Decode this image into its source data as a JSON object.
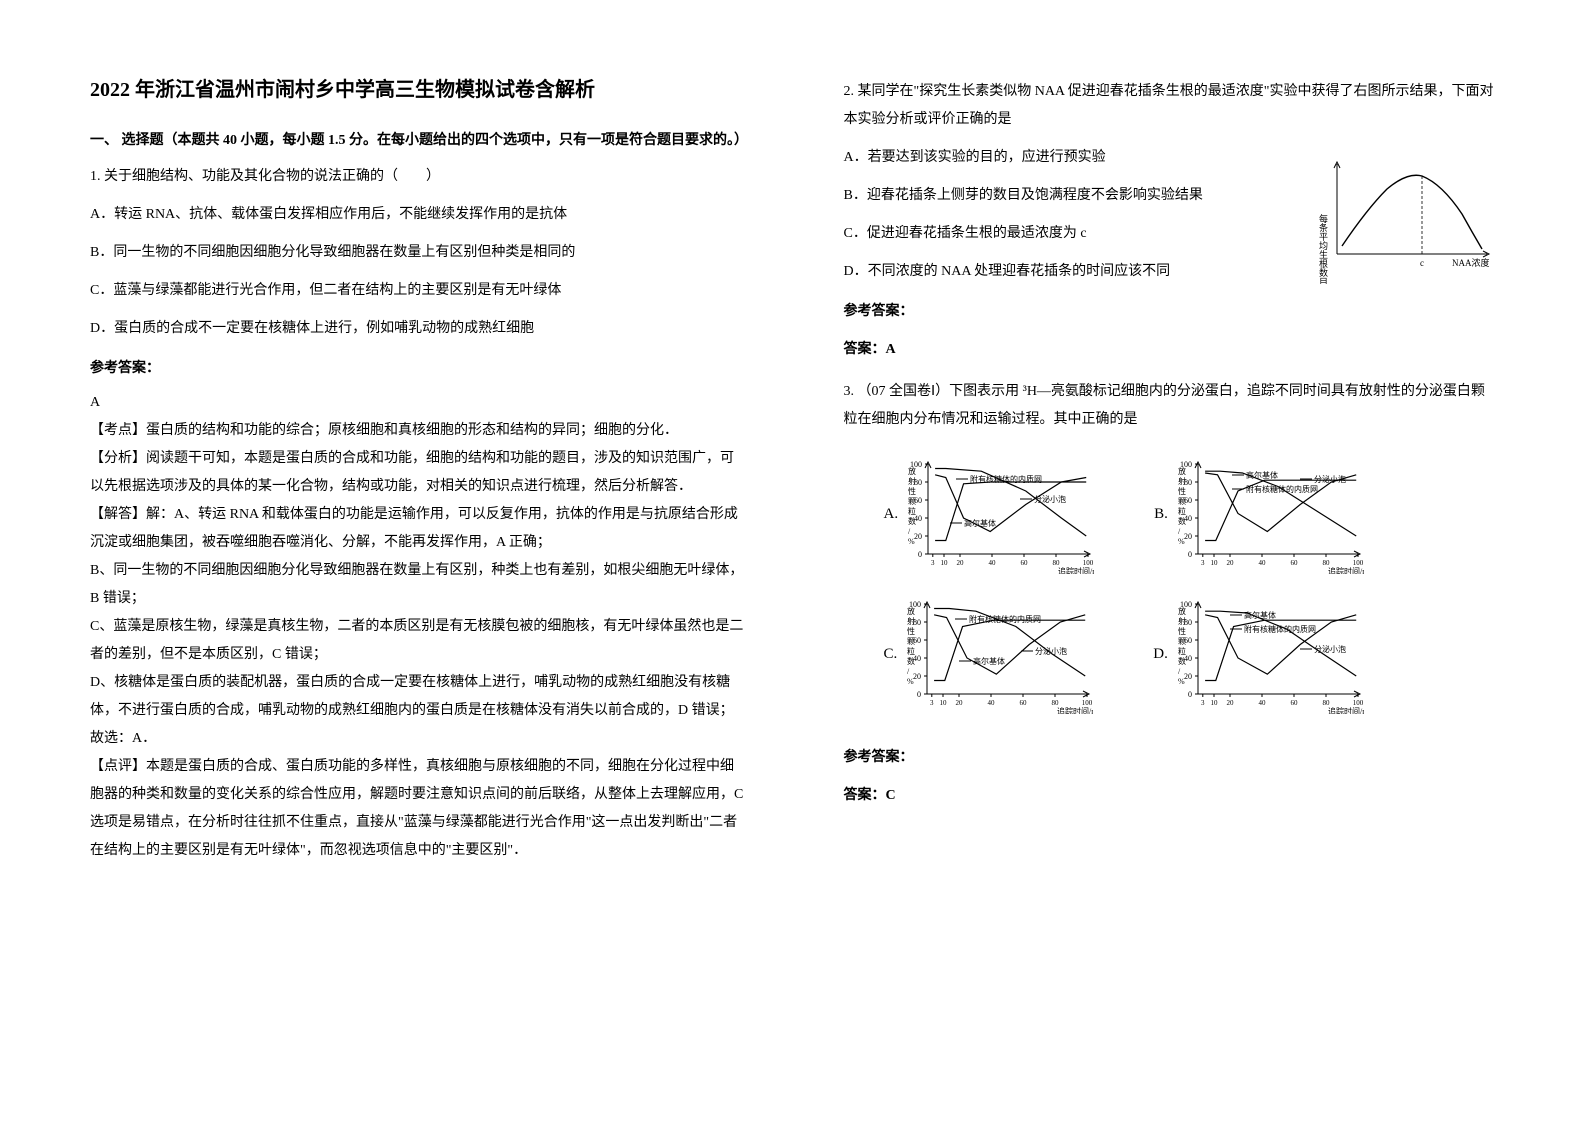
{
  "title": "2022 年浙江省温州市闹村乡中学高三生物模拟试卷含解析",
  "section1": "一、 选择题（本题共 40 小题，每小题 1.5 分。在每小题给出的四个选项中，只有一项是符合题目要求的。）",
  "q1": {
    "stem": "1. 关于细胞结构、功能及其化合物的说法正确的（　　）",
    "A": "A．转运 RNA、抗体、载体蛋白发挥相应作用后，不能继续发挥作用的是抗体",
    "B": "B．同一生物的不同细胞因细胞分化导致细胞器在数量上有区别但种类是相同的",
    "C": "C．蓝藻与绿藻都能进行光合作用，但二者在结构上的主要区别是有无叶绿体",
    "D": "D．蛋白质的合成不一定要在核糖体上进行，例如哺乳动物的成熟红细胞",
    "ansHead": "参考答案：",
    "ans": "A",
    "e1": "【考点】蛋白质的结构和功能的综合；原核细胞和真核细胞的形态和结构的异同；细胞的分化．",
    "e2": "【分析】阅读题干可知，本题是蛋白质的合成和功能，细胞的结构和功能的题目，涉及的知识范围广，可以先根据选项涉及的具体的某一化合物，结构或功能，对相关的知识点进行梳理，然后分析解答．",
    "e3": "【解答】解：A、转运 RNA 和载体蛋白的功能是运输作用，可以反复作用，抗体的作用是与抗原结合形成沉淀或细胞集团，被吞噬细胞吞噬消化、分解，不能再发挥作用，A 正确；",
    "e4": "B、同一生物的不同细胞因细胞分化导致细胞器在数量上有区别，种类上也有差别，如根尖细胞无叶绿体，B 错误；",
    "e5": "C、蓝藻是原核生物，绿藻是真核生物，二者的本质区别是有无核膜包被的细胞核，有无叶绿体虽然也是二者的差别，但不是本质区别，C 错误；",
    "e6": "D、核糖体是蛋白质的装配机器，蛋白质的合成一定要在核糖体上进行，哺乳动物的成熟红细胞没有核糖体，不进行蛋白质的合成，哺乳动物的成熟红细胞内的蛋白质是在核糖体没有消失以前合成的，D 错误；",
    "e7": "故选：A．",
    "e8": "【点评】本题是蛋白质的合成、蛋白质功能的多样性，真核细胞与原核细胞的不同，细胞在分化过程中细胞器的种类和数量的变化关系的综合性应用，解题时要注意知识点间的前后联络，从整体上去理解应用，C 选项是易错点，在分析时往往抓不住重点，直接从\"蓝藻与绿藻都能进行光合作用\"这一点出发判断出\"二者在结构上的主要区别是有无叶绿体\"，而忽视选项信息中的\"主要区别\"．"
  },
  "q2": {
    "stem": "2. 某同学在\"探究生长素类似物 NAA 促进迎春花插条生根的最适浓度\"实验中获得了右图所示结果，下面对本实验分析或评价正确的是",
    "A": "A．若要达到该实验的目的，应进行预实验",
    "B": "B．迎春花插条上侧芽的数目及饱满程度不会影响实验结果",
    "C": "C．促进迎春花插条生根的最适浓度为 c",
    "D": "D．不同浓度的 NAA 处理迎春花插条的时间应该不同",
    "ansHead": "参考答案：",
    "ans": "答案：A",
    "fig": {
      "xlabel": "NAA浓度",
      "ylabel": "每条平均生根数目",
      "axis_color": "#000000",
      "curve_color": "#000000",
      "bg": "#ffffff",
      "curve_points": [
        [
          12,
          88
        ],
        [
          30,
          52
        ],
        [
          60,
          30
        ],
        [
          95,
          25
        ],
        [
          130,
          35
        ],
        [
          160,
          70
        ]
      ],
      "tick_c": 95
    }
  },
  "q3": {
    "stem": "3. （07 全国卷Ⅰ）下图表示用 ³H—亮氨酸标记细胞内的分泌蛋白，追踪不同时间具有放射性的分泌蛋白颗粒在细胞内分布情况和运输过程。其中正确的是",
    "ansHead": "参考答案：",
    "ans": "答案：C",
    "charts": {
      "ylabel": "放射性颗粒数/%",
      "xlabel": "追踪时间/min",
      "yticks": [
        "0",
        "20",
        "40",
        "60",
        "80",
        "100"
      ],
      "xticks": [
        "3",
        "10",
        "20",
        "40",
        "60",
        "80",
        "100"
      ],
      "legend1": "附有核糖体的内质网",
      "legend2": "高尔基体",
      "legend3": "分泌小泡",
      "axis_color": "#000000",
      "line_color": "#000000",
      "bg": "#ffffff",
      "A": {
        "s1": [
          [
            8,
            15
          ],
          [
            20,
            15
          ],
          [
            40,
            78
          ],
          [
            70,
            80
          ],
          [
            110,
            80
          ],
          [
            150,
            80
          ],
          [
            178,
            80
          ]
        ],
        "s2": [
          [
            8,
            88
          ],
          [
            20,
            85
          ],
          [
            40,
            40
          ],
          [
            70,
            25
          ],
          [
            110,
            55
          ],
          [
            150,
            80
          ],
          [
            178,
            85
          ]
        ],
        "s3": [
          [
            8,
            95
          ],
          [
            20,
            95
          ],
          [
            60,
            92
          ],
          [
            110,
            70
          ],
          [
            150,
            40
          ],
          [
            178,
            20
          ]
        ]
      },
      "B": {
        "s1": [
          [
            8,
            92
          ],
          [
            25,
            92
          ],
          [
            50,
            90
          ],
          [
            90,
            75
          ],
          [
            130,
            50
          ],
          [
            178,
            20
          ]
        ],
        "s2": [
          [
            8,
            15
          ],
          [
            20,
            15
          ],
          [
            45,
            70
          ],
          [
            75,
            82
          ],
          [
            115,
            82
          ],
          [
            178,
            82
          ]
        ],
        "s3": [
          [
            8,
            90
          ],
          [
            22,
            88
          ],
          [
            45,
            45
          ],
          [
            78,
            25
          ],
          [
            115,
            55
          ],
          [
            150,
            80
          ],
          [
            178,
            88
          ]
        ]
      },
      "C": {
        "s1": [
          [
            8,
            15
          ],
          [
            20,
            15
          ],
          [
            40,
            75
          ],
          [
            75,
            82
          ],
          [
            115,
            82
          ],
          [
            178,
            82
          ]
        ],
        "s2": [
          [
            8,
            88
          ],
          [
            22,
            85
          ],
          [
            45,
            40
          ],
          [
            78,
            22
          ],
          [
            115,
            55
          ],
          [
            150,
            80
          ],
          [
            178,
            88
          ]
        ],
        "s3": [
          [
            8,
            95
          ],
          [
            25,
            95
          ],
          [
            55,
            92
          ],
          [
            100,
            75
          ],
          [
            140,
            45
          ],
          [
            178,
            20
          ]
        ]
      },
      "D": {
        "s1": [
          [
            8,
            92
          ],
          [
            25,
            92
          ],
          [
            55,
            90
          ],
          [
            100,
            72
          ],
          [
            140,
            45
          ],
          [
            178,
            20
          ]
        ],
        "s2": [
          [
            8,
            88
          ],
          [
            22,
            85
          ],
          [
            45,
            40
          ],
          [
            78,
            22
          ],
          [
            115,
            55
          ],
          [
            150,
            80
          ],
          [
            178,
            88
          ]
        ],
        "s3": [
          [
            8,
            15
          ],
          [
            20,
            15
          ],
          [
            40,
            75
          ],
          [
            75,
            82
          ],
          [
            115,
            82
          ],
          [
            178,
            82
          ]
        ]
      }
    }
  }
}
